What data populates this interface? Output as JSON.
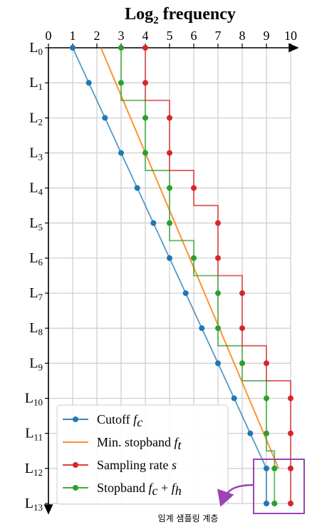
{
  "colors": {
    "cutoff": "#1f77b4",
    "min_stopband": "#ff7f0e",
    "sampling": "#d62728",
    "stopband": "#2ca02c",
    "annotation": "#9b44b4",
    "grid": "#cccccc"
  },
  "chart_data": {
    "type": "line",
    "title_main": "Log",
    "title_sub": "2",
    "title_rest": " frequency",
    "x_axis": {
      "range": [
        0,
        10
      ],
      "ticks": [
        0,
        1,
        2,
        3,
        4,
        5,
        6,
        7,
        8,
        9,
        10
      ],
      "position": "top",
      "direction": "right"
    },
    "y_axis": {
      "direction": "down",
      "tick_prefix": "L",
      "levels": [
        0,
        1,
        2,
        3,
        4,
        5,
        6,
        7,
        8,
        9,
        10,
        11,
        12,
        13
      ]
    },
    "grid": true,
    "legend_position": "bottom-left",
    "series": [
      {
        "key": "cutoff",
        "name": "Cutoff",
        "math": "f",
        "math_sub": "c",
        "style": "line+markers",
        "x": [
          1.0,
          1.667,
          2.333,
          3.0,
          3.667,
          4.333,
          5.0,
          5.667,
          6.333,
          7.0,
          7.667,
          8.333,
          9.0,
          9.0
        ],
        "y": [
          0,
          1,
          2,
          3,
          4,
          5,
          6,
          7,
          8,
          9,
          10,
          11,
          12,
          13
        ]
      },
      {
        "key": "min_stopband",
        "name": "Min. stopband",
        "math": "f",
        "math_sub": "t",
        "style": "line",
        "x": [
          2.167,
          9.5
        ],
        "y": [
          0,
          12
        ]
      },
      {
        "key": "sampling",
        "name": "Sampling rate",
        "math": "s",
        "math_sub": "",
        "style": "step+markers",
        "x": [
          4,
          4,
          5,
          5,
          6,
          7,
          7,
          8,
          8,
          9,
          10,
          10,
          10,
          10
        ],
        "y": [
          0,
          1,
          2,
          3,
          4,
          5,
          6,
          7,
          8,
          9,
          10,
          11,
          12,
          13
        ]
      },
      {
        "key": "stopband",
        "name": "Stopband",
        "math": "f",
        "math_sub": "c",
        "math_extra": " + ",
        "math2": "f",
        "math2_sub": "h",
        "style": "step+markers",
        "x": [
          3,
          3,
          4,
          4,
          5,
          5,
          6,
          7,
          7,
          8,
          9,
          9,
          9.333,
          9.333
        ],
        "y": [
          0,
          1,
          2,
          3,
          4,
          5,
          6,
          7,
          8,
          9,
          10,
          11,
          12,
          13
        ]
      }
    ],
    "annotation": {
      "text": "임계 샘플링 계층",
      "highlight_levels": [
        12,
        13
      ]
    }
  }
}
